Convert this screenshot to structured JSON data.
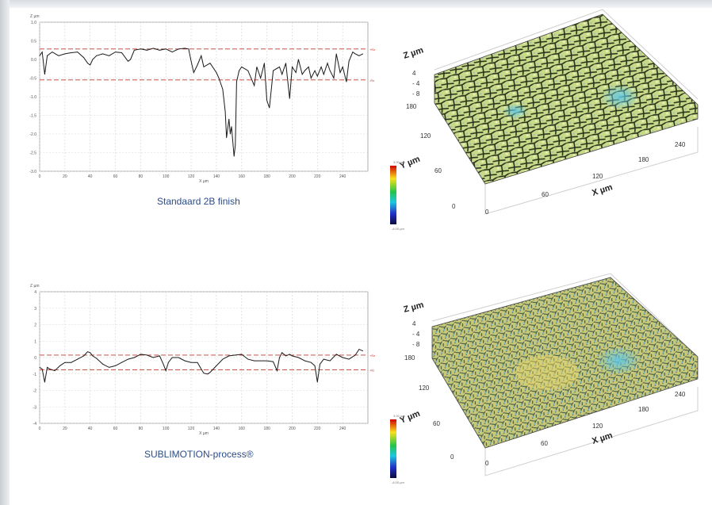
{
  "colors": {
    "profile_line": "#1a1a1a",
    "limit_line": "#c0392b",
    "grid": "#d4d4d4",
    "caption": "#2a4c8c"
  },
  "captions": {
    "top": "Standaard 2B finish",
    "bottom": "SUBLIMOTION-process®"
  },
  "chart_data": [
    {
      "type": "line",
      "ylabel": "Z µm",
      "xlabel": "X µm",
      "xlim": [
        0,
        260
      ],
      "ylim": [
        -3.0,
        1.0
      ],
      "xticks": [
        0,
        20,
        40,
        60,
        80,
        100,
        120,
        140,
        160,
        180,
        200,
        220,
        240
      ],
      "yticks": [
        1.0,
        0.5,
        0.0,
        -0.5,
        -1.0,
        -1.5,
        -2.0,
        -2.5,
        -3.0
      ],
      "ytick_labels": [
        "1.0",
        "0.5",
        "0.0",
        "-0.5",
        "-1.0",
        "-1.5",
        "-2.0",
        "-2.5",
        "-3.0"
      ],
      "hlines": [
        {
          "label": "+Rz",
          "value": 0.28
        },
        {
          "label": "-Rz",
          "value": -0.55
        }
      ],
      "grid": true,
      "x": [
        0,
        2,
        4,
        6,
        8,
        10,
        15,
        20,
        25,
        30,
        35,
        38,
        40,
        42,
        45,
        50,
        55,
        60,
        65,
        70,
        72,
        75,
        80,
        85,
        90,
        95,
        100,
        105,
        110,
        115,
        118,
        120,
        122,
        125,
        128,
        130,
        135,
        140,
        142,
        145,
        147,
        148,
        150,
        151,
        152,
        154,
        155,
        156,
        158,
        160,
        165,
        170,
        172,
        175,
        178,
        180,
        182,
        185,
        190,
        192,
        195,
        198,
        200,
        203,
        205,
        208,
        210,
        213,
        215,
        218,
        220,
        223,
        225,
        228,
        230,
        233,
        235,
        238,
        240,
        243,
        245,
        248,
        250,
        253,
        256
      ],
      "y": [
        0.1,
        0.2,
        -0.4,
        0.1,
        0.15,
        0.2,
        0.1,
        0.15,
        0.18,
        0.2,
        0.05,
        -0.1,
        -0.15,
        0.0,
        0.1,
        0.15,
        0.1,
        0.2,
        0.18,
        -0.05,
        0.0,
        0.25,
        0.28,
        0.25,
        0.3,
        0.25,
        0.28,
        0.2,
        0.28,
        0.3,
        0.28,
        -0.05,
        -0.35,
        -0.15,
        0.1,
        -0.2,
        -0.1,
        -0.35,
        -0.5,
        -0.8,
        -1.4,
        -2.1,
        -1.6,
        -2.0,
        -1.8,
        -2.6,
        -2.3,
        -0.6,
        -0.3,
        -0.2,
        -0.3,
        -0.7,
        -0.2,
        -0.5,
        -0.1,
        -1.1,
        -1.3,
        -0.3,
        -0.2,
        -0.4,
        -0.1,
        -1.05,
        -0.2,
        -0.35,
        0.0,
        -0.4,
        -0.3,
        -0.2,
        -0.5,
        -0.3,
        -0.45,
        -0.2,
        -0.4,
        -0.1,
        -0.3,
        -0.5,
        0.15,
        -0.35,
        -0.2,
        -0.6,
        -0.05,
        0.2,
        0.15,
        0.1,
        0.15
      ]
    },
    {
      "type": "line",
      "ylabel": "Z µm",
      "xlabel": "X µm",
      "xlim": [
        0,
        260
      ],
      "ylim": [
        -4,
        4
      ],
      "xticks": [
        0,
        20,
        40,
        60,
        80,
        100,
        120,
        140,
        160,
        180,
        200,
        220,
        240
      ],
      "yticks": [
        4,
        3,
        2,
        1,
        0,
        -1,
        -2,
        -3,
        -4
      ],
      "ytick_labels": [
        "4",
        "3",
        "2",
        "1",
        "0",
        "-1",
        "-2",
        "-3",
        "-4"
      ],
      "hlines": [
        {
          "label": "+Rz",
          "value": 0.15
        },
        {
          "label": "-Rz",
          "value": -0.75
        }
      ],
      "grid": true,
      "x": [
        0,
        2,
        4,
        6,
        8,
        12,
        16,
        20,
        25,
        30,
        35,
        38,
        40,
        42,
        45,
        50,
        55,
        60,
        65,
        70,
        75,
        80,
        85,
        90,
        95,
        98,
        100,
        102,
        105,
        110,
        115,
        120,
        125,
        128,
        130,
        133,
        135,
        140,
        145,
        150,
        155,
        160,
        165,
        170,
        175,
        180,
        185,
        188,
        190,
        192,
        195,
        198,
        200,
        205,
        210,
        215,
        218,
        220,
        222,
        225,
        230,
        235,
        240,
        245,
        250,
        253,
        256
      ],
      "y": [
        -0.6,
        -0.7,
        -1.5,
        -0.6,
        -0.7,
        -0.8,
        -0.5,
        -0.3,
        -0.3,
        -0.1,
        0.1,
        0.35,
        0.3,
        0.1,
        -0.05,
        -0.4,
        -0.6,
        -0.5,
        -0.3,
        -0.1,
        0.0,
        0.2,
        0.15,
        0.0,
        0.1,
        -0.4,
        -0.8,
        -0.3,
        0.0,
        0.0,
        -0.2,
        -0.3,
        -0.3,
        -0.7,
        -0.95,
        -1.0,
        -0.9,
        -0.5,
        -0.1,
        0.1,
        0.15,
        0.2,
        -0.1,
        -0.2,
        -0.2,
        -0.2,
        -0.25,
        -0.8,
        0.0,
        0.3,
        0.1,
        0.2,
        0.1,
        0.0,
        -0.2,
        -0.3,
        -0.5,
        -1.5,
        -0.4,
        -0.1,
        -0.2,
        0.2,
        0.0,
        -0.1,
        0.15,
        0.5,
        0.4
      ]
    },
    {
      "type": "heatmap",
      "title_marks": {
        "z": "Z µm",
        "y": "Y µm",
        "x": "X µm"
      },
      "z_ticks": [
        "4",
        "- 4",
        "- 8"
      ],
      "y_ticks": [
        "180",
        "120",
        "60",
        "0"
      ],
      "x_ticks": [
        "0",
        "60",
        "120",
        "180",
        "240"
      ],
      "colorbar_top": "3.00 µm",
      "colorbar_bottom": "-8.00 µm"
    },
    {
      "type": "heatmap",
      "title_marks": {
        "z": "Z µm",
        "y": "Y µm",
        "x": "X µm"
      },
      "z_ticks": [
        "4",
        "- 4",
        "- 8"
      ],
      "y_ticks": [
        "180",
        "120",
        "60",
        "0"
      ],
      "x_ticks": [
        "0",
        "60",
        "120",
        "180",
        "240"
      ],
      "colorbar_top": "3.00 µm",
      "colorbar_bottom": "-8.00 µm"
    }
  ]
}
